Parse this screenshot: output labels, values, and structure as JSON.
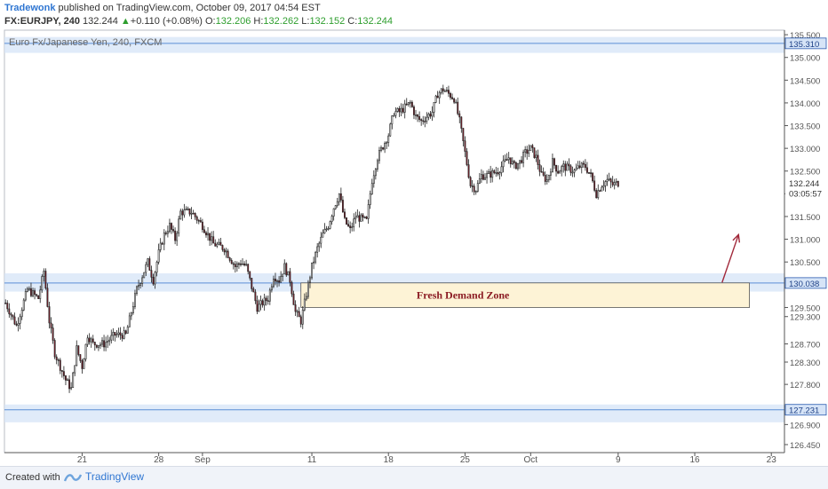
{
  "header": {
    "author": "Tradewonk",
    "published": "published on TradingView.com, October 09, 2017 04:54 EST",
    "symbol": "FX:EURJPY, 240",
    "last": "132.244",
    "change": "+0.110 (+0.08%)",
    "o_label": "O:",
    "o_value": "132.206",
    "h_label": "H:",
    "h_value": "132.262",
    "l_label": "L:",
    "l_value": "132.152",
    "c_label": "C:",
    "c_value": "132.244"
  },
  "footer": {
    "created": "Created with",
    "brand": "TradingView"
  },
  "colors": {
    "up": "#ffffff",
    "down": "#7f1d2a",
    "zone": "#d6e4f7",
    "zoneLine": "#5b8ed6",
    "demand": "#fdf3d6",
    "arrow": "#a1283a",
    "axisText": "#555555",
    "priceBoxes": "#2a5bb0"
  },
  "chart_data": {
    "type": "candlestick",
    "title": "Euro Fx/Japanese Yen, 240, FXCM",
    "x_ticks": [
      {
        "label": "21",
        "day": 21
      },
      {
        "label": "28",
        "day": 28
      },
      {
        "label": "Sep",
        "day": 32
      },
      {
        "label": "11",
        "day": 42
      },
      {
        "label": "18",
        "day": 49
      },
      {
        "label": "25",
        "day": 56
      },
      {
        "label": "Oct",
        "day": 62
      },
      {
        "label": "9",
        "day": 70
      },
      {
        "label": "16",
        "day": 77
      },
      {
        "label": "23",
        "day": 84
      }
    ],
    "y_ticks": [
      "126.450",
      "126.900",
      "127.300",
      "127.800",
      "128.300",
      "128.700",
      "129.300",
      "129.500",
      "130.500",
      "131.000",
      "131.500",
      "132.000",
      "132.500",
      "133.000",
      "133.500",
      "134.000",
      "134.500",
      "135.000",
      "135.500"
    ],
    "y_range": [
      126.4,
      135.6
    ],
    "x_range_days": [
      13.9,
      85.2
    ],
    "price_path": [
      [
        14.0,
        129.6
      ],
      [
        15.0,
        129.1
      ],
      [
        16.0,
        129.9
      ],
      [
        17.0,
        129.7
      ],
      [
        17.5,
        130.3
      ],
      [
        18.0,
        129.2
      ],
      [
        18.5,
        128.5
      ],
      [
        19.0,
        128.2
      ],
      [
        19.5,
        127.9
      ],
      [
        20.0,
        127.7
      ],
      [
        20.5,
        128.6
      ],
      [
        21.0,
        128.2
      ],
      [
        21.5,
        128.9
      ],
      [
        22.0,
        128.7
      ],
      [
        23.0,
        128.7
      ],
      [
        24.0,
        128.9
      ],
      [
        25.0,
        128.9
      ],
      [
        25.5,
        129.4
      ],
      [
        26.0,
        129.9
      ],
      [
        27.0,
        130.5
      ],
      [
        27.5,
        130.1
      ],
      [
        28.0,
        130.7
      ],
      [
        28.5,
        131.1
      ],
      [
        29.0,
        131.3
      ],
      [
        29.5,
        131.0
      ],
      [
        30.0,
        131.6
      ],
      [
        31.0,
        131.6
      ],
      [
        32.0,
        131.3
      ],
      [
        33.0,
        130.9
      ],
      [
        34.0,
        130.8
      ],
      [
        35.0,
        130.4
      ],
      [
        35.5,
        130.5
      ],
      [
        36.0,
        130.4
      ],
      [
        37.0,
        129.5
      ],
      [
        38.0,
        129.7
      ],
      [
        38.5,
        130.2
      ],
      [
        39.0,
        130.1
      ],
      [
        39.5,
        130.4
      ],
      [
        40.0,
        130.1
      ],
      [
        40.5,
        129.4
      ],
      [
        41.0,
        129.2
      ],
      [
        41.5,
        129.8
      ],
      [
        42.0,
        130.4
      ],
      [
        42.5,
        130.8
      ],
      [
        43.0,
        131.1
      ],
      [
        43.5,
        131.3
      ],
      [
        44.0,
        131.7
      ],
      [
        44.5,
        132.0
      ],
      [
        45.0,
        131.4
      ],
      [
        45.5,
        131.2
      ],
      [
        46.0,
        131.5
      ],
      [
        47.0,
        131.4
      ],
      [
        47.5,
        132.3
      ],
      [
        48.0,
        132.8
      ],
      [
        49.0,
        133.3
      ],
      [
        49.5,
        133.8
      ],
      [
        50.0,
        133.8
      ],
      [
        51.0,
        134.0
      ],
      [
        51.5,
        133.7
      ],
      [
        52.0,
        133.6
      ],
      [
        53.0,
        133.8
      ],
      [
        53.5,
        134.2
      ],
      [
        54.0,
        134.3
      ],
      [
        55.0,
        134.1
      ],
      [
        55.5,
        133.6
      ],
      [
        56.0,
        132.9
      ],
      [
        56.5,
        132.2
      ],
      [
        57.0,
        132.1
      ],
      [
        57.5,
        132.4
      ],
      [
        58.0,
        132.4
      ],
      [
        59.0,
        132.5
      ],
      [
        60.0,
        132.8
      ],
      [
        60.5,
        132.6
      ],
      [
        61.0,
        132.7
      ],
      [
        61.5,
        132.9
      ],
      [
        62.0,
        133.0
      ],
      [
        62.5,
        132.8
      ],
      [
        63.0,
        132.4
      ],
      [
        63.5,
        132.3
      ],
      [
        64.0,
        132.7
      ],
      [
        64.5,
        132.5
      ],
      [
        65.0,
        132.6
      ],
      [
        66.0,
        132.5
      ],
      [
        66.5,
        132.6
      ],
      [
        67.0,
        132.6
      ],
      [
        67.5,
        132.4
      ],
      [
        68.0,
        132.0
      ],
      [
        68.5,
        132.2
      ],
      [
        69.0,
        132.3
      ],
      [
        69.5,
        132.2
      ],
      [
        70.0,
        132.24
      ]
    ],
    "zones": [
      {
        "low": 135.1,
        "high": 135.45,
        "label": "135.310",
        "line": 135.31
      },
      {
        "low": 129.85,
        "high": 130.25,
        "label": "130.038",
        "line": 130.038
      },
      {
        "low": 126.95,
        "high": 127.35,
        "label": "127.231",
        "line": 127.231
      }
    ],
    "demand_zone": {
      "label": "Fresh Demand Zone",
      "low": 129.5,
      "high": 130.04,
      "x_start_day": 41.0,
      "x_end_day": 82.0
    },
    "arrow": {
      "from": [
        79.5,
        130.05
      ],
      "to": [
        81.0,
        131.1
      ]
    },
    "price_labels": [
      {
        "label": "135.310",
        "value": 135.31,
        "highlight": true
      },
      {
        "label": "132.244",
        "value": 132.244,
        "highlight": false
      },
      {
        "label": "03:05:57",
        "value": 132.02,
        "highlight": false
      },
      {
        "label": "130.038",
        "value": 130.038,
        "highlight": true
      },
      {
        "label": "127.231",
        "value": 127.231,
        "highlight": true
      }
    ]
  }
}
